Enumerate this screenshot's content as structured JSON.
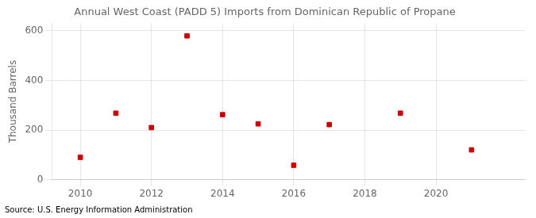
{
  "chart_data": {
    "type": "scatter",
    "title": "Annual West Coast (PADD 5) Imports from Dominican Republic of Propane",
    "ylabel": "Thousand Barrels",
    "annotation": "Source: U.S. Energy Information Administration",
    "x": [
      2010,
      2011,
      2012,
      2013,
      2014,
      2015,
      2016,
      2017,
      2019,
      2021
    ],
    "values": [
      90,
      268,
      210,
      580,
      262,
      225,
      58,
      222,
      268,
      120
    ],
    "color": "#cc0000",
    "marker": "square",
    "xlim": [
      2009.2,
      2022.5
    ],
    "ylim": [
      0,
      630
    ],
    "xticks": [
      2010,
      2012,
      2014,
      2016,
      2018,
      2020
    ],
    "yticks": [
      0,
      200,
      400,
      600
    ],
    "grid": true
  }
}
